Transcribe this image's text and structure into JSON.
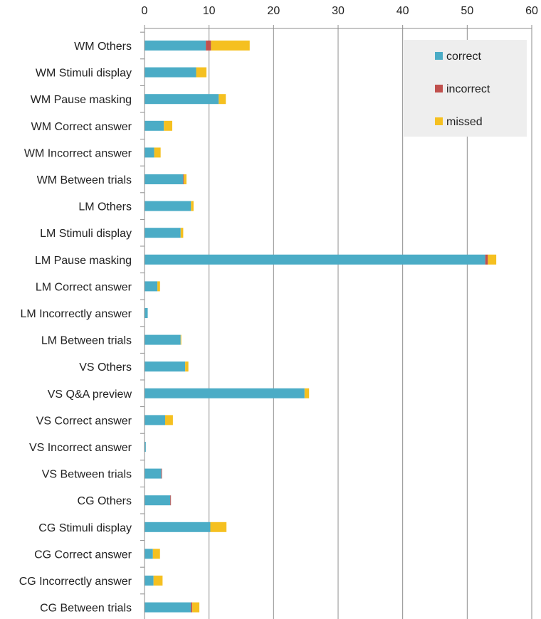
{
  "chart_data": {
    "type": "bar",
    "orientation": "horizontal",
    "stacked": true,
    "xlim": [
      0,
      60
    ],
    "x_ticks": [
      0,
      10,
      20,
      30,
      40,
      50,
      60
    ],
    "axis_position": "top",
    "grid": true,
    "legend_position": "top-right",
    "categories": [
      "WM Others",
      "WM Stimuli display",
      "WM Pause masking",
      "WM Correct answer",
      "WM Incorrect answer",
      "WM Between trials",
      "LM Others",
      "LM Stimuli display",
      "LM Pause masking",
      "LM Correct answer",
      "LM Incorrectly answer",
      "LM Between trials",
      "VS Others",
      "VS Q&A preview",
      "VS Correct answer",
      "VS Incorrect answer",
      "VS Between trials",
      "CG Others",
      "CG Stimuli display",
      "CG Correct answer",
      "CG Incorrectly answer",
      "CG Between trials"
    ],
    "series": [
      {
        "name": "correct",
        "color": "#4BACC6",
        "values": [
          9.5,
          8.0,
          11.5,
          3.0,
          1.5,
          6.0,
          7.2,
          5.6,
          52.8,
          2.0,
          0.5,
          5.6,
          6.3,
          24.8,
          3.2,
          0.2,
          2.6,
          4.0,
          10.2,
          1.3,
          1.4,
          7.2
        ]
      },
      {
        "name": "incorrect",
        "color": "#C0504D",
        "values": [
          0.8,
          0,
          0,
          0,
          0,
          0.1,
          0,
          0,
          0.4,
          0,
          0,
          0,
          0,
          0,
          0,
          0,
          0.1,
          0.1,
          0,
          0,
          0,
          0.2
        ]
      },
      {
        "name": "missed",
        "color": "#F5C020",
        "values": [
          6.0,
          1.6,
          1.1,
          1.3,
          1.0,
          0.4,
          0.4,
          0.4,
          1.3,
          0.4,
          0,
          0.1,
          0.5,
          0.7,
          1.2,
          0,
          0,
          0,
          2.5,
          1.1,
          1.4,
          1.1
        ]
      }
    ]
  }
}
